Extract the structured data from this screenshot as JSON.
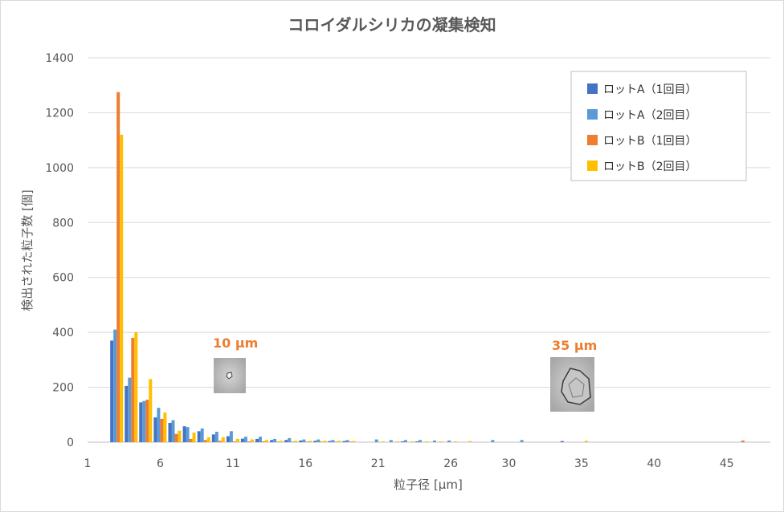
{
  "chart_data": {
    "type": "bar",
    "title": "コロイダルシリカの凝集検知",
    "xlabel": "粒子径 [µm]",
    "ylabel": "検出された粒子数 [個]",
    "ylim": [
      0,
      1400
    ],
    "yticks": [
      0,
      200,
      400,
      600,
      800,
      1000,
      1200,
      1400
    ],
    "xlim": [
      1,
      48
    ],
    "xticks": [
      1,
      6,
      11,
      16,
      21,
      26,
      30,
      35,
      40,
      45
    ],
    "grid": "horizontal",
    "legend_position": "top-right",
    "x": [
      3,
      4,
      5,
      6,
      7,
      8,
      9,
      10,
      11,
      12,
      13,
      14,
      15,
      16,
      17,
      18,
      19,
      20,
      21,
      22,
      23,
      24,
      25,
      26,
      27,
      28,
      29,
      30,
      31,
      32,
      33,
      34,
      35,
      36,
      37,
      38,
      39,
      40,
      41,
      42,
      43,
      44,
      45,
      46
    ],
    "series": [
      {
        "name": "ロットA（1回目）",
        "color": "#4472c4",
        "values": [
          370,
          205,
          145,
          90,
          70,
          58,
          40,
          28,
          22,
          13,
          12,
          8,
          8,
          6,
          5,
          4,
          4,
          0,
          0,
          0,
          3,
          3,
          0,
          0,
          0,
          0,
          0,
          0,
          0,
          0,
          0,
          4,
          0,
          0,
          0,
          0,
          0,
          0,
          0,
          0,
          0,
          0,
          0,
          0
        ]
      },
      {
        "name": "ロットA（2回目）",
        "color": "#5b9bd5",
        "values": [
          410,
          235,
          150,
          125,
          80,
          55,
          50,
          38,
          40,
          20,
          20,
          12,
          15,
          10,
          10,
          8,
          8,
          0,
          10,
          8,
          8,
          8,
          6,
          6,
          0,
          0,
          8,
          0,
          8,
          0,
          0,
          0,
          0,
          0,
          0,
          0,
          0,
          0,
          0,
          0,
          0,
          0,
          0,
          0
        ]
      },
      {
        "name": "ロットB（1回目）",
        "color": "#ed7d31",
        "values": [
          1275,
          380,
          155,
          85,
          30,
          12,
          8,
          5,
          3,
          3,
          3,
          2,
          2,
          2,
          2,
          2,
          2,
          0,
          0,
          0,
          0,
          0,
          0,
          0,
          0,
          0,
          0,
          0,
          0,
          0,
          0,
          0,
          0,
          0,
          0,
          0,
          0,
          0,
          0,
          0,
          0,
          0,
          0,
          6
        ]
      },
      {
        "name": "ロットB（2回目）",
        "color": "#ffc000",
        "values": [
          1120,
          400,
          230,
          108,
          42,
          35,
          18,
          18,
          12,
          10,
          8,
          5,
          5,
          5,
          5,
          5,
          4,
          0,
          3,
          3,
          3,
          3,
          3,
          3,
          4,
          0,
          0,
          0,
          0,
          0,
          0,
          0,
          5,
          0,
          0,
          0,
          0,
          0,
          0,
          0,
          0,
          0,
          0,
          0
        ]
      }
    ],
    "annotations": [
      {
        "label": "10 µm",
        "x": 11
      },
      {
        "label": "35 µm",
        "x": 35
      }
    ]
  }
}
